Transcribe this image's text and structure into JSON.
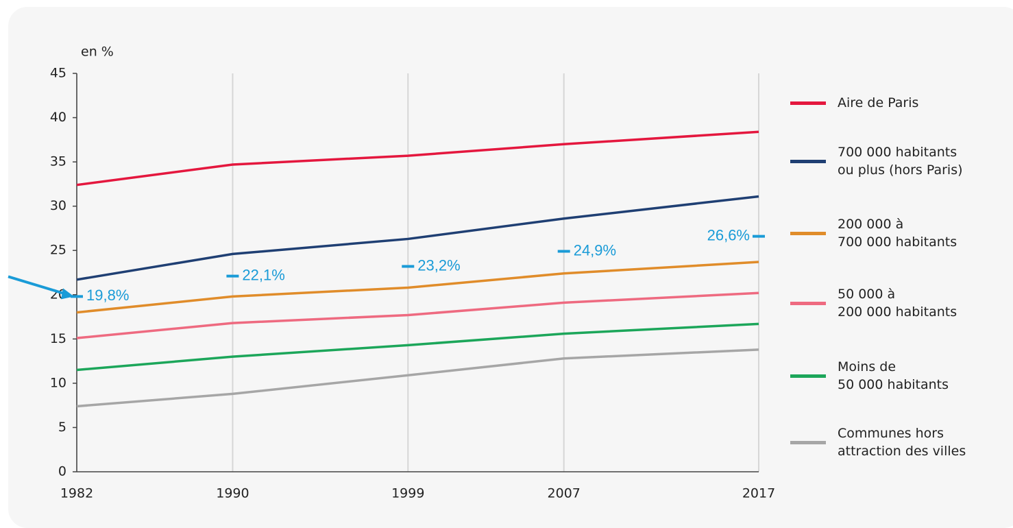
{
  "chart_data": {
    "type": "line",
    "y_label": "en %",
    "x": [
      1982,
      1990,
      1999,
      2007,
      2017
    ],
    "xlim": [
      1982,
      2017
    ],
    "xticks": [
      1982,
      1990,
      1999,
      2007,
      2017
    ],
    "ylim": [
      0,
      45
    ],
    "yticks": [
      0,
      5,
      10,
      15,
      20,
      25,
      30,
      35,
      40,
      45
    ],
    "grid": true,
    "legend": "right",
    "series": [
      {
        "name": "Aire de Paris",
        "color": "#e4173e",
        "values": [
          32.4,
          34.7,
          35.7,
          37.0,
          38.4
        ]
      },
      {
        "name": "700 000 habitants\nou plus (hors Paris)",
        "color": "#1f3f73",
        "values": [
          21.7,
          24.6,
          26.3,
          28.6,
          31.1
        ]
      },
      {
        "name": "200 000 à\n700 000 habitants",
        "color": "#e08c2a",
        "values": [
          18.0,
          19.8,
          20.8,
          22.4,
          23.7
        ]
      },
      {
        "name": "50 000 à\n200 000 habitants",
        "color": "#ee6a80",
        "values": [
          15.1,
          16.8,
          17.7,
          19.1,
          20.2
        ]
      },
      {
        "name": "Moins de\n50 000 habitants",
        "color": "#1ca65a",
        "values": [
          11.5,
          13.0,
          14.3,
          15.6,
          16.7
        ]
      },
      {
        "name": "Communes hors\nattraction des villes",
        "color": "#a6a6a6",
        "values": [
          7.4,
          8.8,
          10.9,
          12.8,
          13.8
        ]
      }
    ],
    "annotations": [
      {
        "text": "19,8%",
        "x": 1982,
        "y": 19.8
      },
      {
        "text": "22,1%",
        "x": 1990,
        "y": 22.1
      },
      {
        "text": "23,2%",
        "x": 1999,
        "y": 23.2
      },
      {
        "text": "24,9%",
        "x": 2007,
        "y": 24.9
      },
      {
        "text": "26,6%",
        "x": 2017,
        "y": 26.6
      }
    ],
    "annotation_color": "#1a9bd7"
  }
}
